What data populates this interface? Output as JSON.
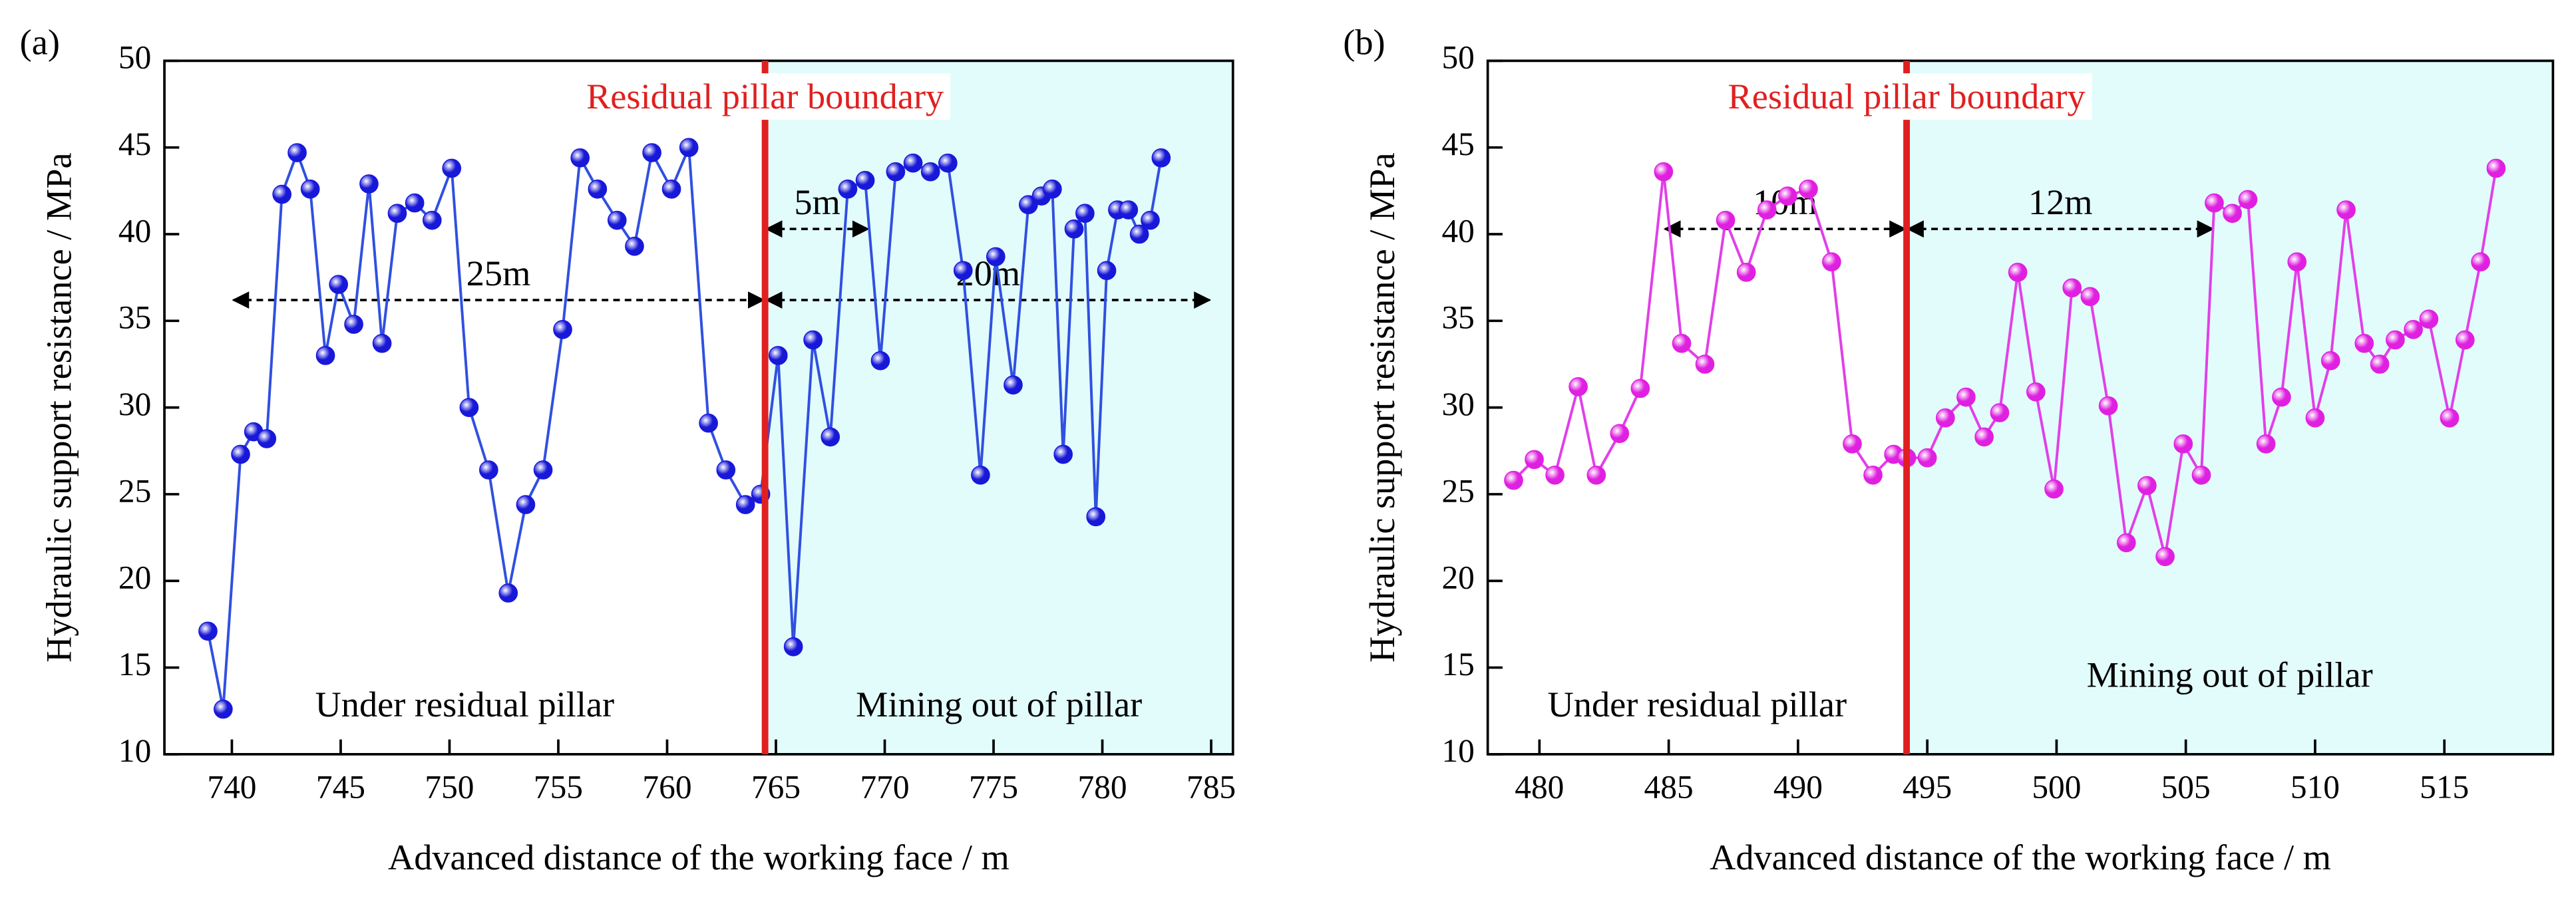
{
  "chart_data": [
    {
      "type": "line",
      "panel_label": "(a)",
      "x_label": "Advanced distance of the working face / m",
      "y_label": "Hydraulic support resistance  / MPa",
      "xlim": [
        736.9,
        786
      ],
      "ylim": [
        10,
        50
      ],
      "xticks": [
        740,
        745,
        750,
        755,
        760,
        765,
        770,
        775,
        780,
        785
      ],
      "yticks": [
        10,
        15,
        20,
        25,
        30,
        35,
        40,
        45,
        50
      ],
      "boundary_x": 764.5,
      "boundary_label": "Residual pillar boundary",
      "boundary_color": "#e02020",
      "shade_color": "#e2fcfc",
      "region_labels": [
        "Under residual pillar",
        "Mining out of pillar"
      ],
      "annotations": [
        {
          "text": "25m",
          "x": [
            740,
            764.5
          ],
          "y": 36.2
        },
        {
          "text": "20m",
          "x": [
            764.5,
            785
          ],
          "y": 36.2
        },
        {
          "text": "5m",
          "x": [
            764.5,
            769.3
          ],
          "y": 40.3
        }
      ],
      "series": [
        {
          "color": "#3050e0",
          "marker_color": "#1818d8",
          "x": [
            738.9,
            739.6,
            740.4,
            741.0,
            741.6,
            742.3,
            743.0,
            743.6,
            744.3,
            744.9,
            745.6,
            746.3,
            746.9,
            747.6,
            748.4,
            749.2,
            750.1,
            750.9,
            751.8,
            752.7,
            753.5,
            754.3,
            755.2,
            756.0,
            756.8,
            757.7,
            758.5,
            759.3,
            760.2,
            761.0,
            761.9,
            762.7,
            763.6,
            764.3,
            765.1,
            765.8,
            766.7,
            767.5,
            768.3,
            769.1,
            769.8,
            770.5,
            771.3,
            772.1,
            772.9,
            773.6,
            774.4,
            775.1,
            775.9,
            776.6,
            777.2,
            777.7,
            778.2,
            778.7,
            779.2,
            779.7,
            780.2,
            780.7,
            781.2,
            781.7,
            782.2,
            782.7
          ],
          "values": [
            17.1,
            12.6,
            27.3,
            28.6,
            28.2,
            42.3,
            44.7,
            42.6,
            33.0,
            37.1,
            34.8,
            42.9,
            33.7,
            41.2,
            41.8,
            40.8,
            43.8,
            30.0,
            26.4,
            19.3,
            24.4,
            26.4,
            34.5,
            44.4,
            42.6,
            40.8,
            39.3,
            44.7,
            42.6,
            45.0,
            29.1,
            26.4,
            24.4,
            25.0,
            33.0,
            16.2,
            33.9,
            28.3,
            42.6,
            43.1,
            32.7,
            43.6,
            44.1,
            43.6,
            44.1,
            37.9,
            26.1,
            38.7,
            31.3,
            41.7,
            42.2,
            42.6,
            27.3,
            40.3,
            41.2,
            23.7,
            37.9,
            41.4,
            41.4,
            40.0,
            40.8,
            44.4
          ]
        }
      ]
    },
    {
      "type": "line",
      "panel_label": "(b)",
      "x_label": "Advanced distance of the working face / m",
      "y_label": "Hydraulic support resistance  / MPa",
      "xlim": [
        478,
        519.2
      ],
      "ylim": [
        10,
        50
      ],
      "xticks": [
        480,
        485,
        490,
        495,
        500,
        505,
        510,
        515
      ],
      "yticks": [
        10,
        15,
        20,
        25,
        30,
        35,
        40,
        45,
        50
      ],
      "boundary_x": 494.2,
      "boundary_label": "Residual pillar boundary",
      "boundary_color": "#e02020",
      "shade_color": "#e2fcfc",
      "region_labels": [
        "Under residual pillar",
        "Mining out of pillar"
      ],
      "annotations": [
        {
          "text": "10m",
          "x": [
            484.8,
            494.2
          ],
          "y": 40.3
        },
        {
          "text": "12m",
          "x": [
            494.2,
            506.1
          ],
          "y": 40.3
        }
      ],
      "series": [
        {
          "color": "#e040e8",
          "marker_color": "#e020e0",
          "x": [
            479.0,
            479.8,
            480.6,
            481.5,
            482.2,
            483.1,
            483.9,
            484.8,
            485.5,
            486.4,
            487.2,
            488.0,
            488.8,
            489.6,
            490.4,
            491.3,
            492.1,
            492.9,
            493.7,
            494.2,
            495.0,
            495.7,
            496.5,
            497.2,
            497.8,
            498.5,
            499.2,
            499.9,
            500.6,
            501.3,
            502.0,
            502.7,
            503.5,
            504.2,
            504.9,
            505.6,
            506.1,
            506.8,
            507.4,
            508.1,
            508.7,
            509.3,
            510.0,
            510.6,
            511.2,
            511.9,
            512.5,
            513.1,
            513.8,
            514.4,
            515.2,
            515.8,
            516.4,
            517.0
          ],
          "values": [
            25.8,
            27.0,
            26.1,
            31.2,
            26.1,
            28.5,
            31.1,
            43.6,
            33.7,
            32.5,
            40.8,
            37.8,
            41.4,
            42.2,
            42.6,
            38.4,
            27.9,
            26.1,
            27.3,
            27.1,
            27.1,
            29.4,
            30.6,
            28.3,
            29.7,
            37.8,
            30.9,
            25.3,
            36.9,
            36.4,
            30.1,
            22.2,
            25.5,
            21.4,
            27.9,
            26.1,
            41.8,
            41.2,
            42.0,
            27.9,
            30.6,
            38.4,
            29.4,
            32.7,
            41.4,
            33.7,
            32.5,
            33.9,
            34.5,
            35.1,
            29.4,
            33.9,
            38.4,
            43.8
          ]
        }
      ]
    }
  ]
}
